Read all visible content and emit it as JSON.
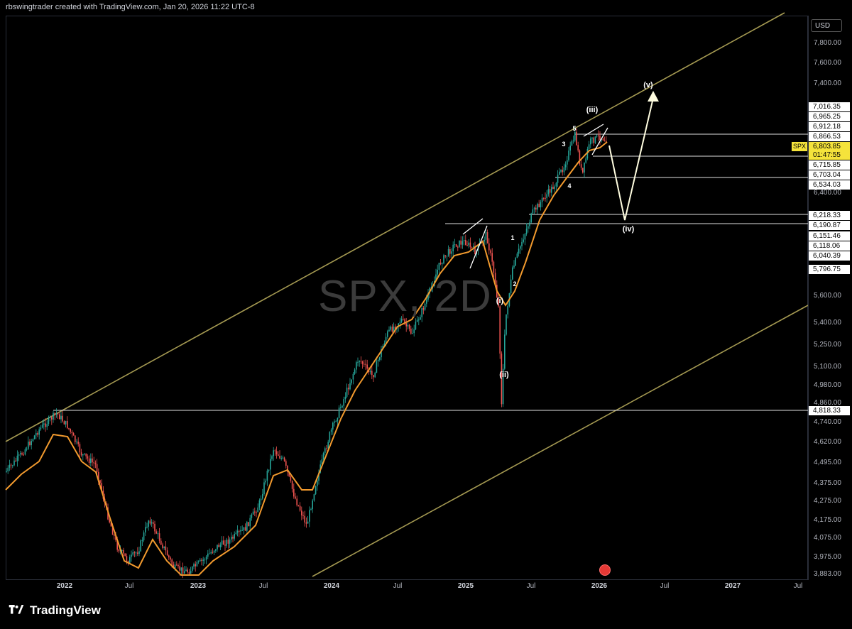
{
  "header": {
    "text": "rbswingtrader created with TradingView.com, Jan 20, 2026 11:22 UTC-8"
  },
  "chart": {
    "symbol_watermark": "SPX, 2D",
    "currency": "USD",
    "price_ticks": [
      "7,800.00",
      "7,600.00",
      "7,400.00",
      "6,400.00",
      "5,600.00",
      "5,400.00",
      "5,250.00",
      "5,100.00",
      "4,980.00",
      "4,860.00",
      "4,740.00",
      "4,620.00",
      "4,495.00",
      "4,375.00",
      "4,275.00",
      "4,175.00",
      "4,075.00",
      "3,975.00",
      "3,883.00"
    ],
    "price_labels": [
      "7,016.35",
      "6,965.25",
      "6,912.18",
      "6,866.53",
      "6,715.85",
      "6,703.04",
      "6,534.03",
      "6,218.33",
      "6,190.87",
      "6,151.46",
      "6,118.06",
      "6,040.39",
      "5,796.75",
      "4,818.33"
    ],
    "last_price": {
      "symbol": "SPX",
      "value": "6,803.85",
      "countdown": "01:47:55"
    },
    "time_labels": [
      "2022",
      "Jul",
      "2023",
      "Jul",
      "2024",
      "Jul",
      "2025",
      "Jul",
      "2026",
      "Jul",
      "2027",
      "Jul"
    ],
    "wave_labels": [
      "(v)",
      "(iii)",
      "5",
      "3",
      "4",
      "1",
      "2",
      "(i)",
      "(ii)",
      "(iv)"
    ],
    "colors": {
      "background": "#000000",
      "channel": "#a59a52",
      "ma": "#f29a2e",
      "drawing": "#fffde0",
      "last_price": "#f5e33b"
    }
  },
  "footer": {
    "brand": "TradingView"
  }
}
